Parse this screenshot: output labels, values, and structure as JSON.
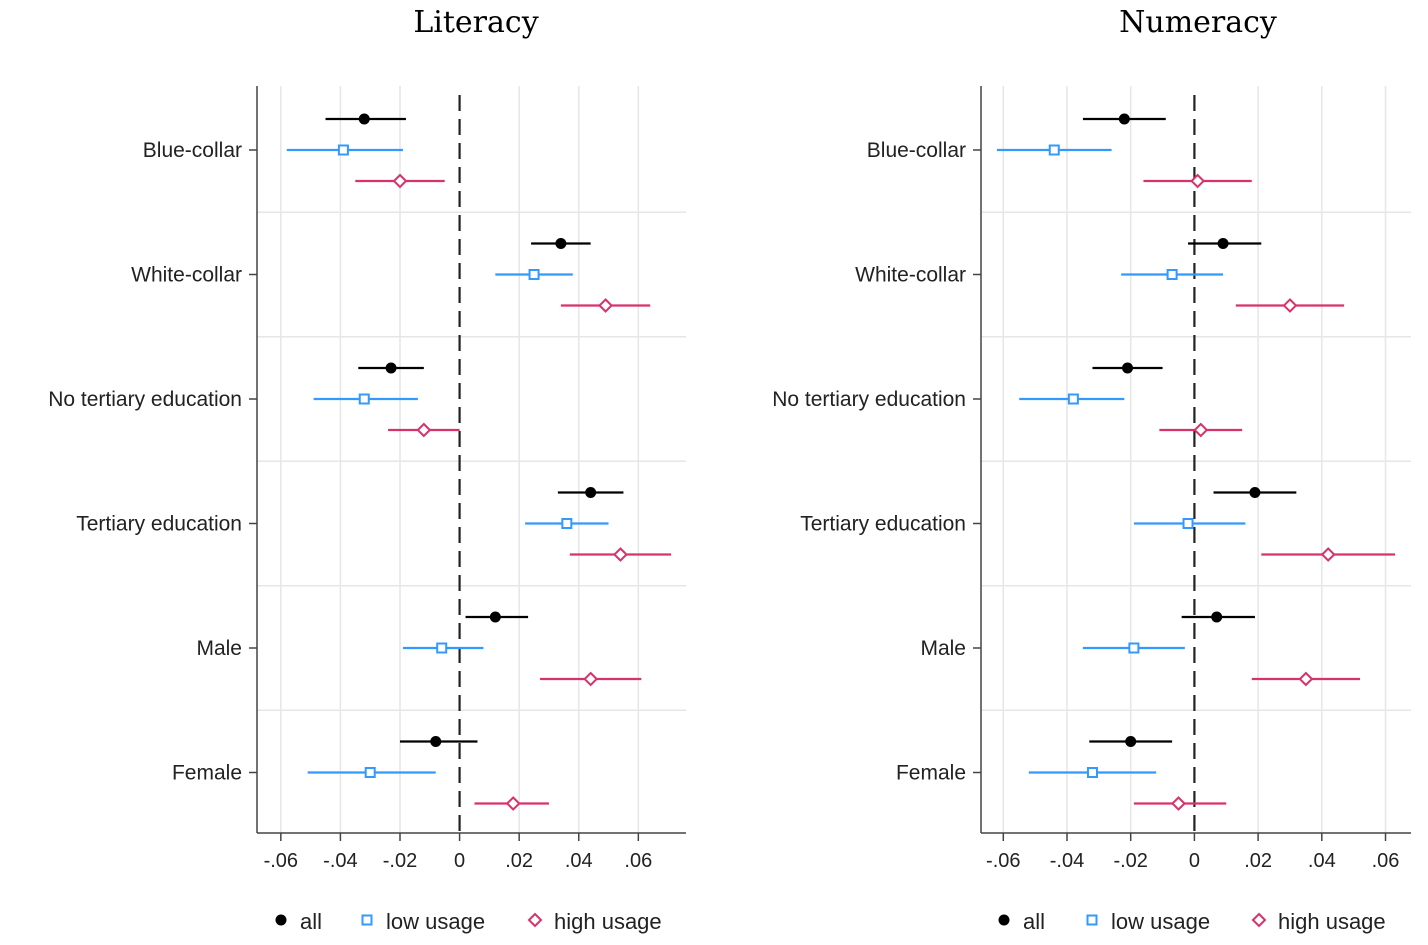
{
  "chart_data": [
    {
      "type": "scatter",
      "title": "Literacy",
      "categories": [
        "Blue-collar",
        "White-collar",
        "No tertiary education",
        "Tertiary education",
        "Male",
        "Female"
      ],
      "xticks": [
        -0.06,
        -0.04,
        -0.02,
        0,
        0.02,
        0.04,
        0.06
      ],
      "xtick_labels": [
        "-.06",
        "-.04",
        "-.02",
        "0",
        ".02",
        ".04",
        ".06"
      ],
      "xlim": [
        -0.068,
        0.076
      ],
      "reference_line": 0,
      "grid": true,
      "legend_position": "bottom",
      "series": [
        {
          "name": "all",
          "color": "#000000",
          "marker": "filled-circle",
          "values": [
            -0.032,
            0.034,
            -0.023,
            0.044,
            0.012,
            -0.008
          ],
          "ci_low": [
            -0.045,
            0.024,
            -0.034,
            0.033,
            0.002,
            -0.02
          ],
          "ci_high": [
            -0.018,
            0.044,
            -0.012,
            0.055,
            0.023,
            0.006
          ]
        },
        {
          "name": "low usage",
          "color": "#3399ff",
          "marker": "hollow-square",
          "values": [
            -0.039,
            0.025,
            -0.032,
            0.036,
            -0.006,
            -0.03
          ],
          "ci_low": [
            -0.058,
            0.012,
            -0.049,
            0.022,
            -0.019,
            -0.051
          ],
          "ci_high": [
            -0.019,
            0.038,
            -0.014,
            0.05,
            0.008,
            -0.008
          ]
        },
        {
          "name": "high usage",
          "color": "#d6336c",
          "marker": "hollow-diamond",
          "values": [
            -0.02,
            0.049,
            -0.012,
            0.054,
            0.044,
            0.018
          ],
          "ci_low": [
            -0.035,
            0.034,
            -0.024,
            0.037,
            0.027,
            0.005
          ],
          "ci_high": [
            -0.005,
            0.064,
            0.0,
            0.071,
            0.061,
            0.03
          ]
        }
      ]
    },
    {
      "type": "scatter",
      "title": "Numeracy",
      "categories": [
        "Blue-collar",
        "White-collar",
        "No tertiary education",
        "Tertiary education",
        "Male",
        "Female"
      ],
      "xticks": [
        -0.06,
        -0.04,
        -0.02,
        0,
        0.02,
        0.04,
        0.06
      ],
      "xtick_labels": [
        "-.06",
        "-.04",
        "-.02",
        "0",
        ".02",
        ".04",
        ".06"
      ],
      "xlim": [
        -0.067,
        0.068
      ],
      "reference_line": 0,
      "grid": true,
      "legend_position": "bottom",
      "series": [
        {
          "name": "all",
          "color": "#000000",
          "marker": "filled-circle",
          "values": [
            -0.022,
            0.009,
            -0.021,
            0.019,
            0.007,
            -0.02
          ],
          "ci_low": [
            -0.035,
            -0.002,
            -0.032,
            0.006,
            -0.004,
            -0.033
          ],
          "ci_high": [
            -0.009,
            0.021,
            -0.01,
            0.032,
            0.019,
            -0.007
          ]
        },
        {
          "name": "low usage",
          "color": "#3399ff",
          "marker": "hollow-square",
          "values": [
            -0.044,
            -0.007,
            -0.038,
            -0.002,
            -0.019,
            -0.032
          ],
          "ci_low": [
            -0.062,
            -0.023,
            -0.055,
            -0.019,
            -0.035,
            -0.052
          ],
          "ci_high": [
            -0.026,
            0.009,
            -0.022,
            0.016,
            -0.003,
            -0.012
          ]
        },
        {
          "name": "high usage",
          "color": "#d6336c",
          "marker": "hollow-diamond",
          "values": [
            0.001,
            0.03,
            0.002,
            0.042,
            0.035,
            -0.005
          ],
          "ci_low": [
            -0.016,
            0.013,
            -0.011,
            0.021,
            0.018,
            -0.019
          ],
          "ci_high": [
            0.018,
            0.047,
            0.015,
            0.063,
            0.052,
            0.01
          ]
        }
      ]
    }
  ]
}
